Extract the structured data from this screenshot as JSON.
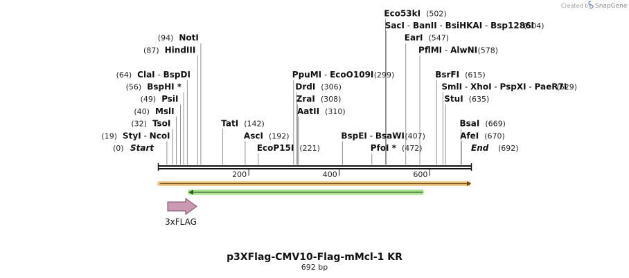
{
  "credit": {
    "prefix": "Created by",
    "brand": "SnapGene"
  },
  "map": {
    "title": "p3XFlag-CMV10-Flag-mMcl-1 KR",
    "length_label": "692 bp",
    "length": 692,
    "ruler_ticks": [
      200,
      400,
      600
    ]
  },
  "features": [
    {
      "name": "3xFLAG",
      "type": "arrow-right",
      "color": "#cc99b3"
    }
  ],
  "sites": [
    {
      "parts": [
        {
          "t": "Start",
          "s": "italic"
        }
      ],
      "pos": "(0)",
      "num": 0,
      "row": 0,
      "side": "left"
    },
    {
      "parts": [
        {
          "t": "StyI",
          "s": "bold"
        },
        {
          "t": " - ",
          "s": "normal"
        },
        {
          "t": "NcoI",
          "s": "bold"
        }
      ],
      "pos": "(19)",
      "num": 19,
      "row": 1,
      "side": "left"
    },
    {
      "parts": [
        {
          "t": "TsoI",
          "s": "bold"
        }
      ],
      "pos": "(32)",
      "num": 32,
      "row": 2,
      "side": "left"
    },
    {
      "parts": [
        {
          "t": "MslI",
          "s": "bold"
        }
      ],
      "pos": "(40)",
      "num": 40,
      "row": 3,
      "side": "left"
    },
    {
      "parts": [
        {
          "t": "PsiI",
          "s": "bold"
        }
      ],
      "pos": "(49)",
      "num": 49,
      "row": 4,
      "side": "left"
    },
    {
      "parts": [
        {
          "t": "BspHI *",
          "s": "bold"
        }
      ],
      "pos": "(56)",
      "num": 56,
      "row": 5,
      "side": "left"
    },
    {
      "parts": [
        {
          "t": "ClaI",
          "s": "bold"
        },
        {
          "t": " - ",
          "s": "normal"
        },
        {
          "t": "BspDI",
          "s": "bold"
        }
      ],
      "pos": "(64)",
      "num": 64,
      "row": 6,
      "side": "left"
    },
    {
      "parts": [
        {
          "t": "HindIII",
          "s": "bold"
        }
      ],
      "pos": "(87)",
      "num": 87,
      "row": 8,
      "side": "left"
    },
    {
      "parts": [
        {
          "t": "NotI",
          "s": "bold"
        }
      ],
      "pos": "(94)",
      "num": 94,
      "row": 9,
      "side": "left"
    },
    {
      "parts": [
        {
          "t": "TatI",
          "s": "bold"
        }
      ],
      "pos": "(142)",
      "num": 142,
      "row": 2,
      "side": "right"
    },
    {
      "parts": [
        {
          "t": "AscI",
          "s": "bold"
        }
      ],
      "pos": "(192)",
      "num": 192,
      "row": 1,
      "side": "right"
    },
    {
      "parts": [
        {
          "t": "EcoP15I",
          "s": "bold"
        }
      ],
      "pos": "(221)",
      "num": 221,
      "row": 0,
      "side": "right"
    },
    {
      "parts": [
        {
          "t": "AatII",
          "s": "bold"
        }
      ],
      "pos": "(310)",
      "num": 310,
      "row": 3,
      "side": "right"
    },
    {
      "parts": [
        {
          "t": "ZraI",
          "s": "bold"
        }
      ],
      "pos": "(308)",
      "num": 308,
      "row": 4,
      "side": "right"
    },
    {
      "parts": [
        {
          "t": "DrdI",
          "s": "bold"
        }
      ],
      "pos": "(306)",
      "num": 306,
      "row": 5,
      "side": "right"
    },
    {
      "parts": [
        {
          "t": "PpuMI",
          "s": "bold"
        },
        {
          "t": " - ",
          "s": "normal"
        },
        {
          "t": "EcoO109I",
          "s": "bold"
        }
      ],
      "pos": "(299)",
      "num": 299,
      "row": 6,
      "side": "right"
    },
    {
      "parts": [
        {
          "t": "BspEI",
          "s": "bold"
        },
        {
          "t": " - ",
          "s": "normal"
        },
        {
          "t": "BsaWI",
          "s": "bold"
        }
      ],
      "pos": "(407)",
      "num": 407,
      "row": 1,
      "side": "right"
    },
    {
      "parts": [
        {
          "t": "PfoI *",
          "s": "bold"
        }
      ],
      "pos": "(472)",
      "num": 472,
      "row": 0,
      "side": "right"
    },
    {
      "parts": [
        {
          "t": "Eco53kI",
          "s": "bold"
        }
      ],
      "pos": "(502)",
      "num": 502,
      "row": 11,
      "side": "right"
    },
    {
      "parts": [
        {
          "t": "SacI",
          "s": "bold"
        },
        {
          "t": " - ",
          "s": "normal"
        },
        {
          "t": "BanII",
          "s": "bold"
        },
        {
          "t": " - ",
          "s": "normal"
        },
        {
          "t": "BsiHKAI",
          "s": "bold"
        },
        {
          "t": " - ",
          "s": "normal"
        },
        {
          "t": "Bsp1286I",
          "s": "bold"
        }
      ],
      "pos": "(504)",
      "num": 504,
      "row": 10,
      "side": "right"
    },
    {
      "parts": [
        {
          "t": "EarI",
          "s": "bold"
        }
      ],
      "pos": "(547)",
      "num": 547,
      "row": 9,
      "side": "right"
    },
    {
      "parts": [
        {
          "t": "PflMI",
          "s": "bold"
        },
        {
          "t": " - ",
          "s": "normal"
        },
        {
          "t": "AlwNI",
          "s": "bold"
        }
      ],
      "pos": "(578)",
      "num": 578,
      "row": 8,
      "side": "right"
    },
    {
      "parts": [
        {
          "t": "BsrFI",
          "s": "bold"
        }
      ],
      "pos": "(615)",
      "num": 615,
      "row": 6,
      "side": "right"
    },
    {
      "parts": [
        {
          "t": "SmlI",
          "s": "bold"
        },
        {
          "t": " - ",
          "s": "normal"
        },
        {
          "t": "XhoI",
          "s": "bold"
        },
        {
          "t": " - ",
          "s": "normal"
        },
        {
          "t": "PspXI",
          "s": "bold"
        },
        {
          "t": " - ",
          "s": "normal"
        },
        {
          "t": "PaeR7I",
          "s": "bold"
        }
      ],
      "pos": "(629)",
      "num": 629,
      "row": 5,
      "side": "right"
    },
    {
      "parts": [
        {
          "t": "StuI",
          "s": "bold"
        }
      ],
      "pos": "(635)",
      "num": 635,
      "row": 4,
      "side": "right"
    },
    {
      "parts": [
        {
          "t": "BsaI",
          "s": "bold"
        }
      ],
      "pos": "(669)",
      "num": 669,
      "row": 2,
      "side": "right"
    },
    {
      "parts": [
        {
          "t": "AfeI",
          "s": "bold"
        }
      ],
      "pos": "(670)",
      "num": 670,
      "row": 1,
      "side": "right"
    },
    {
      "parts": [
        {
          "t": "End",
          "s": "italic"
        }
      ],
      "pos": "(692)",
      "num": 692,
      "row": 0,
      "side": "right"
    }
  ]
}
